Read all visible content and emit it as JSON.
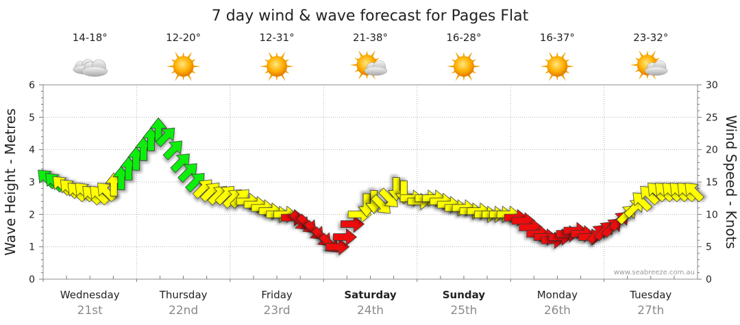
{
  "chart_data": {
    "type": "line",
    "title": "7 day wind & wave forecast for Pages Flat",
    "ylabel_left": "Wave Height - Metres",
    "ylabel_right": "Wind Speed - Knots",
    "ylim_left": [
      0,
      6
    ],
    "ylim_right": [
      0,
      30
    ],
    "yticks_left": [
      "0",
      "1",
      "2",
      "3",
      "4",
      "5",
      "6"
    ],
    "yticks_right": [
      "0",
      "5",
      "10",
      "15",
      "20",
      "25",
      "30"
    ],
    "grid": true,
    "watermark": "www.seabreeze.com.au",
    "days": [
      {
        "name": "Wednesday",
        "date": "21st",
        "temp": "14-18°",
        "icon": "cloudy-icon",
        "bold": false
      },
      {
        "name": "Thursday",
        "date": "22nd",
        "temp": "12-20°",
        "icon": "sunny-icon",
        "bold": false
      },
      {
        "name": "Friday",
        "date": "23rd",
        "temp": "12-31°",
        "icon": "sunny-icon",
        "bold": false
      },
      {
        "name": "Saturday",
        "date": "24th",
        "temp": "21-38°",
        "icon": "partly-cloudy-icon",
        "bold": true
      },
      {
        "name": "Sunday",
        "date": "25th",
        "temp": "16-28°",
        "icon": "sunny-icon",
        "bold": true
      },
      {
        "name": "Monday",
        "date": "26th",
        "temp": "16-37°",
        "icon": "sunny-icon",
        "bold": false
      },
      {
        "name": "Tuesday",
        "date": "27th",
        "temp": "23-32°",
        "icon": "partly-cloudy-icon",
        "bold": false
      }
    ],
    "wind_color_key": {
      "lt10": "#ee1111",
      "10to15": "#ffff00",
      "15to20": "#11ee11"
    },
    "series": [
      {
        "values": [
          15.5,
          15,
          14.5,
          14,
          13.5,
          13.5,
          13,
          13,
          13.5,
          14.5,
          15.5,
          17,
          18.5,
          20,
          21.5,
          23,
          22,
          20,
          18,
          16.5,
          15,
          14,
          13.5,
          13,
          13,
          12.5,
          12.5,
          12,
          11.5,
          11,
          10.5,
          10,
          10,
          9.5,
          9,
          8.5,
          7.5,
          6.5,
          5.5,
          5,
          6.5,
          8.5,
          10,
          11.5,
          12,
          11.5,
          12.5,
          14,
          13.5,
          12.5,
          12,
          12.5,
          12.5,
          12,
          11.5,
          11,
          11,
          10.5,
          10.5,
          10,
          10,
          10,
          10,
          9.5,
          9,
          8,
          7,
          6.5,
          6,
          6.5,
          7,
          7.5,
          7,
          6.5,
          7,
          7.5,
          8,
          9,
          10,
          11,
          12,
          13,
          13.5,
          13.5,
          13.5,
          13.5,
          13.5,
          13.5
        ],
        "direction": [
          "SE",
          "SE",
          "SE",
          "SE",
          "SE",
          "SE",
          "SE",
          "SE",
          "SE",
          "S",
          "S",
          "S",
          "S",
          "S",
          "S",
          "S",
          "SW",
          "SW",
          "SW",
          "SW",
          "SW",
          "SW",
          "SW",
          "SW",
          "SW",
          "SW",
          "SW",
          "W",
          "W",
          "W",
          "W",
          "W",
          "W",
          "W",
          "NW",
          "NW",
          "NW",
          "NW",
          "NW",
          "W",
          "W",
          "W",
          "W",
          "N",
          "N",
          "NW",
          "NW",
          "N",
          "N",
          "W",
          "W",
          "W",
          "W",
          "W",
          "W",
          "W",
          "W",
          "W",
          "W",
          "W",
          "W",
          "W",
          "W",
          "W",
          "W",
          "W",
          "W",
          "W",
          "W",
          "W",
          "W",
          "W",
          "W",
          "W",
          "SW",
          "SW",
          "SW",
          "SW",
          "SW",
          "SW",
          "SE",
          "SE",
          "SE",
          "SE",
          "SE",
          "SE",
          "SE",
          "SE"
        ]
      }
    ]
  }
}
